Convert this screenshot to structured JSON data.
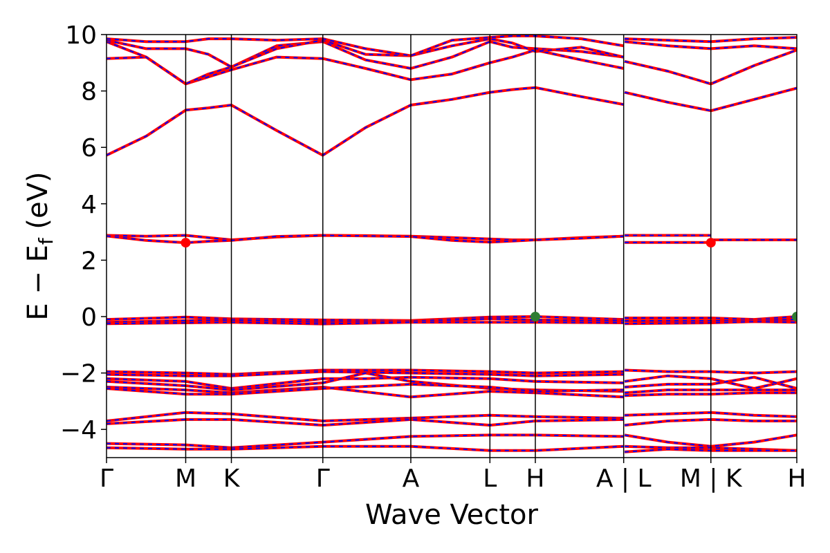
{
  "chart_data": {
    "type": "line",
    "xlabel": "Wave Vector",
    "ylabel_main": "E − E",
    "ylabel_sub": "f",
    "ylabel_unit": " (eV)",
    "ylim": [
      -5,
      10
    ],
    "y_ticks": [
      -4,
      -2,
      0,
      2,
      4,
      6,
      8,
      10
    ],
    "y_tick_labels": [
      "−4",
      "−2",
      "0",
      "2",
      "4",
      "6",
      "8",
      "10"
    ],
    "x_ticks": [
      0,
      0.917,
      1.446,
      2.505,
      3.524,
      4.44,
      4.966,
      5.989,
      6.999,
      7.994
    ],
    "x_tick_labels": [
      "Γ",
      "M",
      "K",
      "Γ",
      "A",
      "L",
      "H",
      "A | L",
      "M | K",
      "H"
    ],
    "segment_breaks": [
      5.989,
      6.999
    ],
    "xlim": [
      0,
      7.994
    ],
    "series_style": {
      "red": "#ff0000",
      "blue": "#0000ff"
    },
    "marker_colors": {
      "vbm": "#2e7d32",
      "cbm": "#ff0000"
    },
    "bands": [
      {
        "x": [
          0,
          0.46,
          0.917,
          1.18,
          1.446,
          1.97,
          2.505,
          3.0,
          3.524,
          4.0,
          4.44,
          4.7,
          4.966,
          5.5,
          5.989
        ],
        "y": [
          5.72,
          6.4,
          7.32,
          7.4,
          7.5,
          6.6,
          5.72,
          6.7,
          7.5,
          7.7,
          7.95,
          8.05,
          8.12,
          7.8,
          7.52
        ]
      },
      {
        "x": [
          0,
          0.46,
          0.917,
          1.18,
          1.446,
          1.97,
          2.505,
          3.0,
          3.524,
          4.0,
          4.44,
          4.7,
          4.966,
          5.5,
          5.989
        ],
        "y": [
          9.15,
          9.2,
          8.25,
          8.5,
          8.75,
          9.2,
          9.15,
          8.8,
          8.4,
          8.6,
          9.0,
          9.2,
          9.45,
          9.1,
          8.8
        ]
      },
      {
        "x": [
          0,
          0.46,
          0.917,
          1.18,
          1.446,
          1.97,
          2.505,
          3.0,
          3.524,
          4.0,
          4.44,
          4.7,
          4.966,
          5.5,
          5.989
        ],
        "y": [
          9.75,
          9.2,
          8.25,
          8.6,
          8.85,
          9.6,
          9.75,
          9.1,
          8.8,
          9.2,
          9.75,
          9.55,
          9.5,
          9.4,
          9.2
        ]
      },
      {
        "x": [
          0,
          0.46,
          0.917,
          1.18,
          1.446,
          1.97,
          2.505,
          3.0,
          3.524,
          4.0,
          4.44,
          4.7,
          4.966,
          5.5,
          5.989
        ],
        "y": [
          9.8,
          9.5,
          9.5,
          9.3,
          8.85,
          9.5,
          9.8,
          9.3,
          9.25,
          9.6,
          9.85,
          9.7,
          9.4,
          9.55,
          9.2
        ]
      },
      {
        "x": [
          0,
          0.46,
          0.917,
          1.18,
          1.446,
          1.97,
          2.505,
          3.0,
          3.524,
          4.0,
          4.44,
          4.7,
          4.966,
          5.5,
          5.989
        ],
        "y": [
          9.85,
          9.75,
          9.75,
          9.85,
          9.85,
          9.8,
          9.85,
          9.5,
          9.25,
          9.8,
          9.9,
          9.95,
          9.95,
          9.85,
          9.6
        ]
      },
      {
        "x": [
          6.0,
          6.5,
          6.999,
          7.5,
          7.994
        ],
        "y": [
          7.95,
          7.6,
          7.3,
          7.7,
          8.1
        ]
      },
      {
        "x": [
          6.0,
          6.5,
          6.999,
          7.5,
          7.994
        ],
        "y": [
          9.05,
          8.7,
          8.25,
          8.9,
          9.45
        ]
      },
      {
        "x": [
          6.0,
          6.5,
          6.999,
          7.5,
          7.994
        ],
        "y": [
          9.75,
          9.6,
          9.5,
          9.6,
          9.5
        ]
      },
      {
        "x": [
          6.0,
          6.5,
          6.999,
          7.5,
          7.994
        ],
        "y": [
          9.85,
          9.8,
          9.75,
          9.85,
          9.9
        ]
      },
      {
        "x": [
          0,
          0.46,
          0.917,
          1.18,
          1.446,
          1.97,
          2.505,
          3.0,
          3.524,
          4.0,
          4.44,
          4.7,
          4.966,
          5.5,
          5.989
        ],
        "y": [
          2.88,
          2.85,
          2.88,
          2.8,
          2.72,
          2.82,
          2.88,
          2.87,
          2.85,
          2.8,
          2.75,
          2.72,
          2.72,
          2.8,
          2.85
        ]
      },
      {
        "x": [
          0,
          0.46,
          0.917,
          1.18,
          1.446,
          1.97,
          2.505,
          3.0,
          3.524,
          4.0,
          4.44,
          4.7,
          4.966,
          5.5,
          5.989
        ],
        "y": [
          2.86,
          2.7,
          2.62,
          2.67,
          2.7,
          2.84,
          2.88,
          2.86,
          2.84,
          2.7,
          2.64,
          2.68,
          2.72,
          2.78,
          2.85
        ]
      },
      {
        "x": [
          6.0,
          6.999
        ],
        "y": [
          2.88,
          2.88
        ]
      },
      {
        "x": [
          6.0,
          6.999
        ],
        "y": [
          2.63,
          2.63
        ]
      },
      {
        "x": [
          6.999,
          7.994
        ],
        "y": [
          2.72,
          2.72
        ]
      },
      {
        "x": [
          0,
          0.917,
          1.446,
          2.505,
          3.524,
          4.44,
          4.966,
          5.989
        ],
        "y": [
          -0.1,
          -0.02,
          -0.08,
          -0.12,
          -0.14,
          -0.02,
          0.0,
          -0.1
        ]
      },
      {
        "x": [
          0,
          0.917,
          1.446,
          2.505,
          3.524,
          4.44,
          4.966,
          5.989
        ],
        "y": [
          -0.2,
          -0.14,
          -0.12,
          -0.2,
          -0.16,
          -0.08,
          -0.12,
          -0.15
        ]
      },
      {
        "x": [
          0,
          0.917,
          1.446,
          2.505,
          3.524,
          4.44,
          4.966,
          5.989
        ],
        "y": [
          -0.25,
          -0.22,
          -0.2,
          -0.26,
          -0.2,
          -0.2,
          -0.2,
          -0.22
        ]
      },
      {
        "x": [
          6.0,
          6.999,
          7.5,
          7.994
        ],
        "y": [
          -0.05,
          -0.05,
          -0.1,
          0.0
        ]
      },
      {
        "x": [
          6.0,
          6.999,
          7.5,
          7.994
        ],
        "y": [
          -0.15,
          -0.15,
          -0.14,
          -0.1
        ]
      },
      {
        "x": [
          6.0,
          6.999,
          7.5,
          7.994
        ],
        "y": [
          -0.25,
          -0.22,
          -0.18,
          -0.2
        ]
      },
      {
        "x": [
          0,
          0.917,
          1.446,
          2.505,
          3.524,
          4.44,
          4.966,
          5.989
        ],
        "y": [
          -1.95,
          -2.0,
          -2.05,
          -1.9,
          -1.9,
          -1.95,
          -2.0,
          -1.95
        ]
      },
      {
        "x": [
          0,
          0.917,
          1.446,
          2.505,
          3.524,
          4.44,
          4.966,
          5.989
        ],
        "y": [
          -2.05,
          -2.1,
          -2.1,
          -1.95,
          -2.0,
          -2.05,
          -2.1,
          -2.05
        ]
      },
      {
        "x": [
          0,
          0.917,
          1.446,
          2.505,
          3.0,
          3.524,
          4.44,
          4.966,
          5.989
        ],
        "y": [
          -2.2,
          -2.3,
          -2.55,
          -2.2,
          -2.2,
          -2.15,
          -2.2,
          -2.3,
          -2.35
        ]
      },
      {
        "x": [
          0,
          0.917,
          1.446,
          2.505,
          3.0,
          3.524,
          4.44,
          4.966,
          5.989
        ],
        "y": [
          -2.3,
          -2.45,
          -2.6,
          -2.35,
          -2.0,
          -2.3,
          -2.55,
          -2.6,
          -2.65
        ]
      },
      {
        "x": [
          0,
          0.917,
          1.446,
          2.505,
          3.524,
          4.44,
          4.966,
          5.989
        ],
        "y": [
          -2.5,
          -2.6,
          -2.7,
          -2.5,
          -2.85,
          -2.65,
          -2.7,
          -2.85
        ]
      },
      {
        "x": [
          0,
          0.917,
          1.446,
          2.505,
          3.524,
          4.44,
          4.966,
          5.989
        ],
        "y": [
          -2.55,
          -2.75,
          -2.75,
          -2.55,
          -2.4,
          -2.5,
          -2.65,
          -2.6
        ]
      },
      {
        "x": [
          6.0,
          6.5,
          6.999,
          7.5,
          7.994
        ],
        "y": [
          -1.9,
          -1.95,
          -1.95,
          -2.0,
          -1.95
        ]
      },
      {
        "x": [
          6.0,
          6.5,
          6.999,
          7.5,
          7.994
        ],
        "y": [
          -2.3,
          -2.1,
          -2.2,
          -2.55,
          -2.2
        ]
      },
      {
        "x": [
          6.0,
          6.5,
          6.999,
          7.5,
          7.994
        ],
        "y": [
          -2.5,
          -2.4,
          -2.4,
          -2.15,
          -2.55
        ]
      },
      {
        "x": [
          6.0,
          6.5,
          6.999,
          7.5,
          7.994
        ],
        "y": [
          -2.7,
          -2.6,
          -2.6,
          -2.6,
          -2.6
        ]
      },
      {
        "x": [
          6.0,
          6.5,
          6.999,
          7.5,
          7.994
        ],
        "y": [
          -2.8,
          -2.75,
          -2.75,
          -2.7,
          -2.7
        ]
      },
      {
        "x": [
          0,
          0.917,
          1.446,
          2.505,
          3.524,
          4.44,
          4.966,
          5.989
        ],
        "y": [
          -3.7,
          -3.4,
          -3.45,
          -3.7,
          -3.6,
          -3.5,
          -3.55,
          -3.6
        ]
      },
      {
        "x": [
          0,
          0.917,
          1.446,
          2.505,
          3.524,
          4.44,
          4.966,
          5.989
        ],
        "y": [
          -3.8,
          -3.65,
          -3.65,
          -3.85,
          -3.65,
          -3.85,
          -3.7,
          -3.65
        ]
      },
      {
        "x": [
          6.0,
          6.5,
          6.999,
          7.5,
          7.994
        ],
        "y": [
          -3.5,
          -3.45,
          -3.4,
          -3.5,
          -3.55
        ]
      },
      {
        "x": [
          6.0,
          6.5,
          6.999,
          7.5,
          7.994
        ],
        "y": [
          -3.85,
          -3.7,
          -3.65,
          -3.7,
          -3.7
        ]
      },
      {
        "x": [
          0,
          0.917,
          1.446,
          2.505,
          3.524,
          4.44,
          4.966,
          5.989
        ],
        "y": [
          -4.5,
          -4.55,
          -4.65,
          -4.45,
          -4.25,
          -4.2,
          -4.2,
          -4.25
        ]
      },
      {
        "x": [
          0,
          0.917,
          1.446,
          2.505,
          3.524,
          4.44,
          4.966,
          5.989
        ],
        "y": [
          -4.65,
          -4.7,
          -4.7,
          -4.6,
          -4.6,
          -4.75,
          -4.75,
          -4.6
        ]
      },
      {
        "x": [
          6.0,
          6.5,
          6.999,
          7.5,
          7.994
        ],
        "y": [
          -4.2,
          -4.45,
          -4.6,
          -4.45,
          -4.2
        ]
      },
      {
        "x": [
          6.0,
          6.5,
          6.999,
          7.5,
          7.994
        ],
        "y": [
          -4.6,
          -4.65,
          -4.65,
          -4.7,
          -4.75
        ]
      },
      {
        "x": [
          6.0,
          6.5,
          6.999,
          7.5,
          7.994
        ],
        "y": [
          -4.8,
          -4.7,
          -4.75,
          -4.75,
          -4.75
        ]
      }
    ],
    "markers": [
      {
        "kind": "cbm",
        "x": 0.917,
        "y": 2.62
      },
      {
        "kind": "cbm",
        "x": 6.999,
        "y": 2.62
      },
      {
        "kind": "vbm",
        "x": 4.966,
        "y": 0.0
      },
      {
        "kind": "vbm",
        "x": 7.994,
        "y": 0.0
      }
    ]
  }
}
